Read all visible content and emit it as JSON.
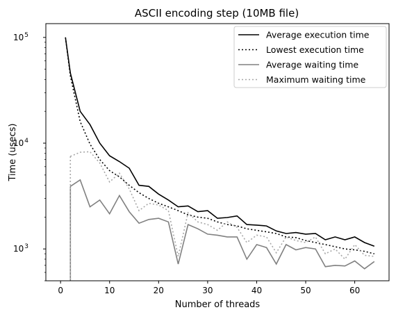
{
  "chart_data": {
    "type": "line",
    "title": "ASCII encoding step (10MB file)",
    "xlabel": "Number of threads",
    "ylabel": "Time (usecs)",
    "yscale": "log",
    "xlim": [
      -3,
      67
    ],
    "ylim": [
      500,
      135000
    ],
    "xticks": [
      {
        "value": 0,
        "label": "0"
      },
      {
        "value": 10,
        "label": "10"
      },
      {
        "value": 20,
        "label": "20"
      },
      {
        "value": 30,
        "label": "30"
      },
      {
        "value": 40,
        "label": "40"
      },
      {
        "value": 50,
        "label": "50"
      },
      {
        "value": 60,
        "label": "60"
      }
    ],
    "yticks": [
      {
        "value": 1000,
        "base": "10",
        "exp": "3"
      },
      {
        "value": 10000,
        "base": "10",
        "exp": "4"
      },
      {
        "value": 100000,
        "base": "10",
        "exp": "5"
      }
    ],
    "grid": false,
    "legend_position": "top-right",
    "x": [
      1,
      2,
      4,
      6,
      8,
      10,
      12,
      14,
      16,
      18,
      20,
      22,
      24,
      26,
      28,
      30,
      32,
      34,
      36,
      38,
      40,
      42,
      44,
      46,
      48,
      50,
      52,
      54,
      56,
      58,
      60,
      62,
      64
    ],
    "series": [
      {
        "name": "Average execution time",
        "color": "#000000",
        "dash": "solid",
        "values": [
          100000,
          46000,
          20000,
          15000,
          10000,
          7600,
          6700,
          5800,
          4000,
          3900,
          3300,
          2900,
          2500,
          2550,
          2250,
          2300,
          1950,
          1980,
          2050,
          1700,
          1680,
          1650,
          1480,
          1400,
          1430,
          1380,
          1400,
          1220,
          1300,
          1220,
          1300,
          1150,
          1060
        ]
      },
      {
        "name": "Lowest execution time",
        "color": "#000000",
        "dash": "dotted",
        "values": [
          100000,
          43000,
          16000,
          9800,
          7000,
          5500,
          4800,
          4000,
          3400,
          3000,
          2700,
          2500,
          2300,
          2100,
          2000,
          1950,
          1800,
          1700,
          1650,
          1550,
          1500,
          1450,
          1400,
          1300,
          1280,
          1200,
          1150,
          1100,
          1050,
          1000,
          980,
          950,
          900
        ]
      },
      {
        "name": "Average waiting time",
        "color": "#808080",
        "dash": "solid",
        "values": [
          null,
          3900,
          4500,
          2500,
          2900,
          2150,
          3200,
          2250,
          1750,
          1900,
          1950,
          1800,
          720,
          1700,
          1550,
          1380,
          1350,
          1300,
          1300,
          800,
          1100,
          1030,
          720,
          1100,
          980,
          1030,
          1000,
          680,
          700,
          690,
          770,
          650,
          760
        ]
      },
      {
        "name": "Maximum waiting time",
        "color": "#a6a6a6",
        "dash": "dotted",
        "values": [
          null,
          7500,
          8200,
          8300,
          6500,
          4300,
          5200,
          3700,
          2300,
          2700,
          2600,
          2300,
          850,
          2200,
          1800,
          1700,
          1500,
          1800,
          1600,
          1150,
          1350,
          1300,
          920,
          1300,
          1200,
          1150,
          1300,
          900,
          1000,
          800,
          1100,
          870,
          850
        ]
      }
    ]
  }
}
